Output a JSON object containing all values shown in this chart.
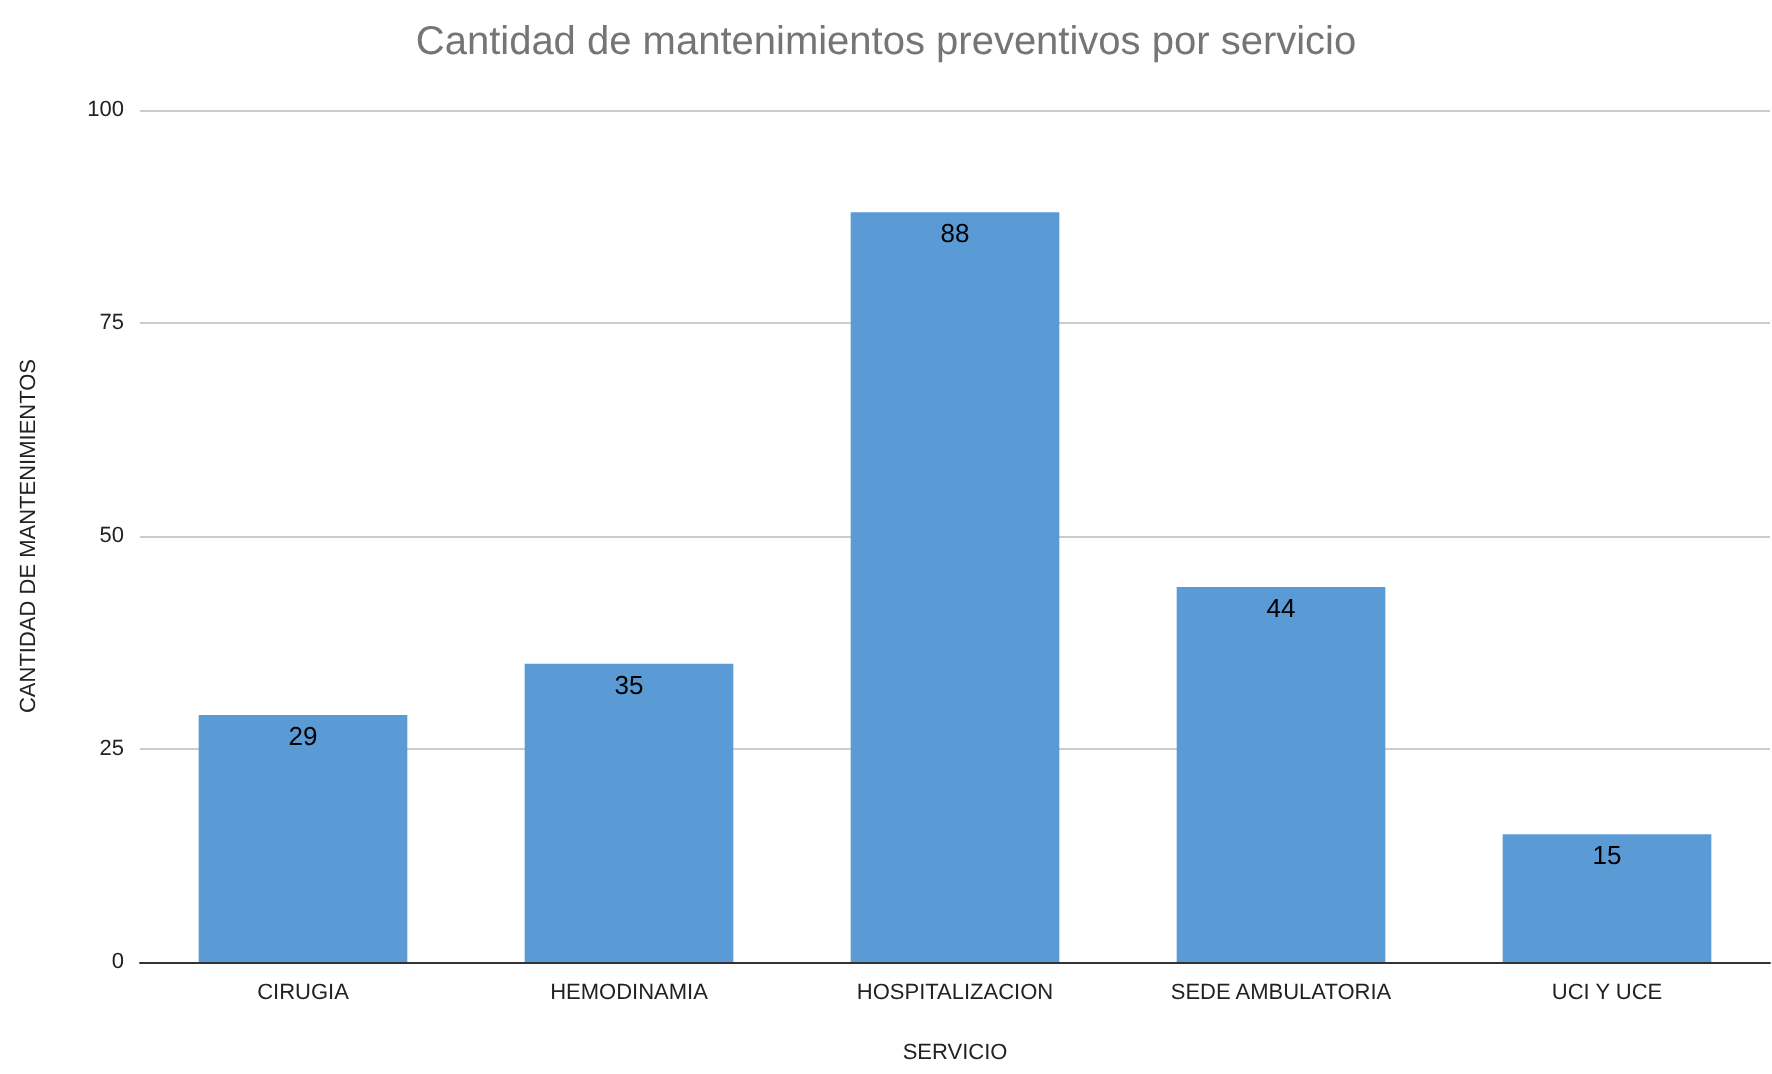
{
  "chart_data": {
    "type": "bar",
    "title": "Cantidad de mantenimientos preventivos por servicio",
    "xlabel": "SERVICIO",
    "ylabel": "CANTIDAD DE MANTENIMIENTOS",
    "categories": [
      "CIRUGIA",
      "HEMODINAMIA",
      "HOSPITALIZACION",
      "SEDE AMBULATORIA",
      "UCI Y UCE"
    ],
    "values": [
      29,
      35,
      88,
      44,
      15
    ],
    "color": "#5b9bd5",
    "ylim": [
      0,
      100
    ],
    "yticks": [
      0,
      25,
      50,
      75,
      100
    ],
    "grid": "y",
    "data_labels": true
  }
}
